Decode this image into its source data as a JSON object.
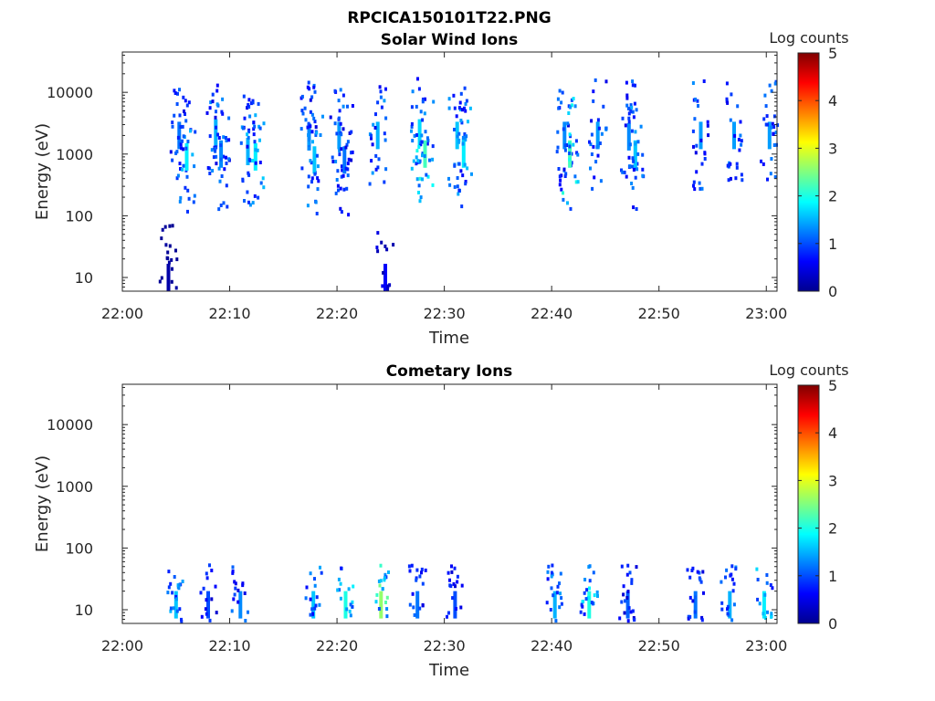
{
  "figure": {
    "title": "RPCICA150101T22.PNG"
  },
  "colorbar": {
    "label": "Log counts",
    "ticks": [
      "0",
      "1",
      "2",
      "3",
      "4",
      "5"
    ],
    "range": [
      0,
      5
    ],
    "colormap": "jet"
  },
  "chart_data": [
    {
      "type": "heatmap",
      "title": "Solar Wind Ions",
      "xlabel": "Time",
      "ylabel": "Energy (eV)",
      "x_ticks": [
        "22:00",
        "22:10",
        "22:20",
        "22:30",
        "22:40",
        "22:50",
        "23:00"
      ],
      "y_ticks": [
        "10",
        "100",
        "1000",
        "10000"
      ],
      "y_scale": "log",
      "xlim": [
        "22:00",
        "23:01"
      ],
      "ylim": [
        6,
        45000
      ],
      "colorbar_label": "Log counts",
      "clim": [
        0,
        5
      ],
      "bursts": [
        {
          "time": "22:04.3",
          "energy_eV": 10,
          "log_counts": 0.2
        },
        {
          "time": "22:05.3",
          "energy_eV": 2000,
          "log_counts": 1.2
        },
        {
          "time": "22:06.0",
          "energy_eV": 900,
          "log_counts": 1.8
        },
        {
          "time": "22:08.7",
          "energy_eV": 2200,
          "log_counts": 1.5
        },
        {
          "time": "22:09.2",
          "energy_eV": 1000,
          "log_counts": 1.3
        },
        {
          "time": "22:11.7",
          "energy_eV": 1100,
          "log_counts": 1.5
        },
        {
          "time": "22:12.4",
          "energy_eV": 900,
          "log_counts": 1.8
        },
        {
          "time": "22:17.4",
          "energy_eV": 1900,
          "log_counts": 1.3
        },
        {
          "time": "22:17.9",
          "energy_eV": 800,
          "log_counts": 1.6
        },
        {
          "time": "22:20.2",
          "energy_eV": 2000,
          "log_counts": 1.4
        },
        {
          "time": "22:20.7",
          "energy_eV": 800,
          "log_counts": 1.2
        },
        {
          "time": "22:23.8",
          "energy_eV": 2000,
          "log_counts": 1.5
        },
        {
          "time": "22:24.5",
          "energy_eV": 10,
          "log_counts": 0.6
        },
        {
          "time": "22:27.7",
          "energy_eV": 2200,
          "log_counts": 1.7
        },
        {
          "time": "22:28.2",
          "energy_eV": 1000,
          "log_counts": 2.2
        },
        {
          "time": "22:31.2",
          "energy_eV": 2000,
          "log_counts": 1.6
        },
        {
          "time": "22:31.8",
          "energy_eV": 1000,
          "log_counts": 1.8
        },
        {
          "time": "22:41.2",
          "energy_eV": 2000,
          "log_counts": 1.3
        },
        {
          "time": "22:41.7",
          "energy_eV": 1000,
          "log_counts": 2.2
        },
        {
          "time": "22:44.3",
          "energy_eV": 2000,
          "log_counts": 1.4
        },
        {
          "time": "22:47.2",
          "energy_eV": 1900,
          "log_counts": 1.3
        },
        {
          "time": "22:47.8",
          "energy_eV": 1000,
          "log_counts": 1.6
        },
        {
          "time": "22:53.9",
          "energy_eV": 2000,
          "log_counts": 1.4
        },
        {
          "time": "22:57.0",
          "energy_eV": 2000,
          "log_counts": 1.4
        },
        {
          "time": "23:00.3",
          "energy_eV": 2000,
          "log_counts": 1.4
        }
      ]
    },
    {
      "type": "heatmap",
      "title": "Cometary Ions",
      "xlabel": "Time",
      "ylabel": "Energy (eV)",
      "x_ticks": [
        "22:00",
        "22:10",
        "22:20",
        "22:30",
        "22:40",
        "22:50",
        "23:00"
      ],
      "y_ticks": [
        "10",
        "100",
        "1000",
        "10000"
      ],
      "y_scale": "log",
      "xlim": [
        "22:00",
        "23:01"
      ],
      "ylim": [
        6,
        45000
      ],
      "colorbar_label": "Log counts",
      "clim": [
        0,
        5
      ],
      "bursts": [
        {
          "time": "22:05.0",
          "energy_eV": 12,
          "log_counts": 1.6
        },
        {
          "time": "22:08.0",
          "energy_eV": 12,
          "log_counts": 1.0
        },
        {
          "time": "22:11.0",
          "energy_eV": 12,
          "log_counts": 1.3
        },
        {
          "time": "22:17.8",
          "energy_eV": 12,
          "log_counts": 1.6
        },
        {
          "time": "22:20.8",
          "energy_eV": 12,
          "log_counts": 2.0
        },
        {
          "time": "22:24.1",
          "energy_eV": 12,
          "log_counts": 2.6
        },
        {
          "time": "22:27.5",
          "energy_eV": 12,
          "log_counts": 1.2
        },
        {
          "time": "22:31.0",
          "energy_eV": 12,
          "log_counts": 1.0
        },
        {
          "time": "22:40.3",
          "energy_eV": 12,
          "log_counts": 1.5
        },
        {
          "time": "22:43.5",
          "energy_eV": 12,
          "log_counts": 2.0
        },
        {
          "time": "22:47.1",
          "energy_eV": 12,
          "log_counts": 1.1
        },
        {
          "time": "22:53.4",
          "energy_eV": 12,
          "log_counts": 1.2
        },
        {
          "time": "22:56.6",
          "energy_eV": 12,
          "log_counts": 1.5
        },
        {
          "time": "22:59.8",
          "energy_eV": 12,
          "log_counts": 1.8
        }
      ]
    }
  ]
}
